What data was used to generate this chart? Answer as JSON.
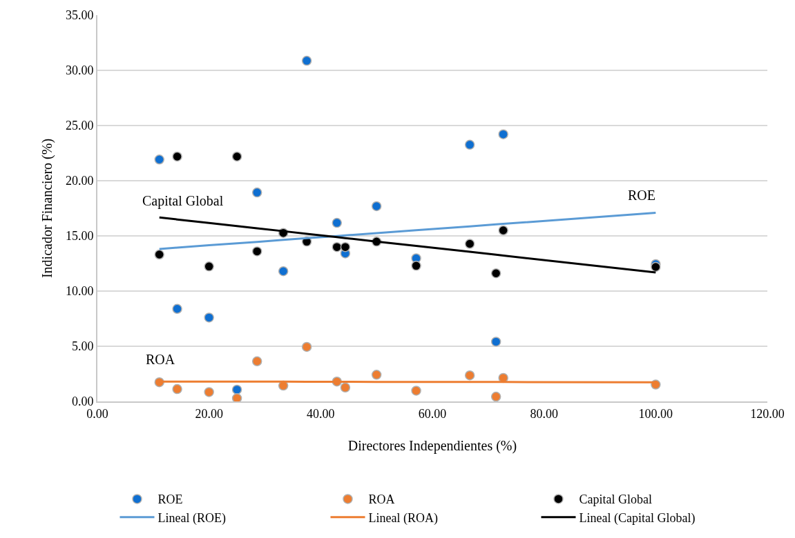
{
  "chart_data": {
    "type": "scatter",
    "xlabel": "Directores Independientes (%)",
    "ylabel": "Indicador Financiero (%)",
    "x": [
      11.1,
      14.3,
      20,
      25,
      28.6,
      33.3,
      37.5,
      42.9,
      44.4,
      50,
      57.1,
      66.7,
      71.4,
      72.7,
      100
    ],
    "series": [
      {
        "name": "ROE",
        "color": "#0f6fd1",
        "marker": "circle",
        "values": [
          21.92,
          8.39,
          7.6,
          1.07,
          18.93,
          11.8,
          30.87,
          16.18,
          13.41,
          17.69,
          12.97,
          23.26,
          5.41,
          24.21,
          12.44
        ]
      },
      {
        "name": "ROA",
        "color": "#ed7d31",
        "marker": "circle",
        "values": [
          1.74,
          1.12,
          0.85,
          0.29,
          3.64,
          1.43,
          4.94,
          1.8,
          1.26,
          2.42,
          0.97,
          2.36,
          0.43,
          2.13,
          1.53
        ]
      },
      {
        "name": "Capital Global",
        "color": "#000000",
        "marker": "circle",
        "values": [
          13.31,
          22.19,
          12.23,
          22.19,
          13.6,
          15.27,
          14.48,
          13.99,
          13.99,
          14.48,
          12.29,
          14.28,
          11.61,
          15.5,
          12.19
        ]
      },
      {
        "name": "Lineal (ROE)",
        "type": "line",
        "color": "#5b9bd5",
        "line_style": "solid",
        "marker": "none",
        "values": [
          13.82,
          13.94,
          14.15,
          14.33,
          14.46,
          14.64,
          14.79,
          14.99,
          15.04,
          15.25,
          15.51,
          15.86,
          16.04,
          16.09,
          17.09
        ]
      },
      {
        "name": "Lineal (ROA)",
        "type": "line",
        "color": "#ed7d31",
        "line_style": "solid",
        "marker": "none",
        "values": [
          1.8,
          1.8,
          1.79,
          1.79,
          1.79,
          1.79,
          1.78,
          1.78,
          1.78,
          1.77,
          1.77,
          1.76,
          1.76,
          1.76,
          1.74
        ]
      },
      {
        "name": "Lineal (Capital Global)",
        "type": "line",
        "color": "#000000",
        "line_style": "solid",
        "marker": "none",
        "values": [
          16.67,
          16.49,
          16.17,
          15.89,
          15.69,
          15.43,
          15.19,
          14.89,
          14.8,
          14.49,
          14.09,
          13.56,
          13.29,
          13.22,
          11.69
        ]
      }
    ],
    "annotations": [
      "Capital Global",
      "ROE",
      "ROA"
    ],
    "xlim": [
      0,
      120
    ],
    "xticks": [
      {
        "value": 0,
        "label": "0.00"
      },
      {
        "value": 20,
        "label": "20.00"
      },
      {
        "value": 40,
        "label": "40.00"
      },
      {
        "value": 60,
        "label": "60.00"
      },
      {
        "value": 80,
        "label": "80.00"
      },
      {
        "value": 100,
        "label": "100.00"
      },
      {
        "value": 120,
        "label": "120.00"
      }
    ],
    "ylim": [
      0,
      35
    ],
    "yticks": [
      {
        "value": 0,
        "label": "0.00"
      },
      {
        "value": 5,
        "label": "5.00"
      },
      {
        "value": 10,
        "label": "10.00"
      },
      {
        "value": 15,
        "label": "15.00"
      },
      {
        "value": 20,
        "label": "20.00"
      },
      {
        "value": 25,
        "label": "25.00"
      },
      {
        "value": 30,
        "label": "30.00"
      },
      {
        "value": 35,
        "label": "35.00"
      }
    ],
    "grid": "y",
    "legend": "bottom"
  }
}
